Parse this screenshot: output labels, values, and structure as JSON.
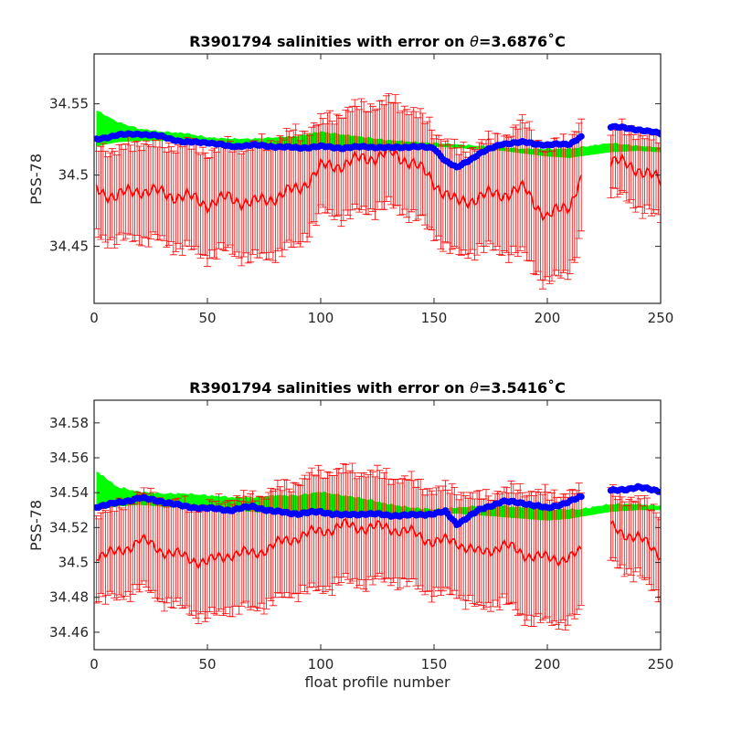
{
  "chart_data": [
    {
      "type": "line",
      "title": "R3901794 salinities with error on θ=3.6876˚C",
      "title_parts": {
        "prefix": "R3901794 salinities with error on ",
        "symbol": "θ",
        "suffix": "=3.6876˚C"
      },
      "xlabel": "",
      "ylabel": "PSS-78",
      "xlim": [
        0,
        250
      ],
      "ylim": [
        34.41,
        34.585
      ],
      "xticks": [
        0,
        50,
        100,
        150,
        200,
        250
      ],
      "yticks": [
        34.45,
        34.5,
        34.55
      ],
      "ytick_labels": [
        "34.45",
        "34.5",
        "34.55"
      ],
      "grid": false,
      "colors": {
        "float": "#ff0000",
        "mapped": "#00ff00",
        "calibrated": "#0000ff"
      },
      "series": [
        {
          "role": "float",
          "style": "line-errorbar",
          "profiles": [
            1,
            10,
            20,
            30,
            40,
            50,
            60,
            70,
            80,
            90,
            100,
            110,
            120,
            130,
            140,
            150,
            160,
            170,
            180,
            190,
            200,
            210,
            214,
            228,
            240,
            250
          ],
          "x": [
            1,
            10,
            20,
            30,
            40,
            50,
            60,
            70,
            80,
            90,
            100,
            110,
            120,
            130,
            140,
            150,
            160,
            170,
            180,
            190,
            200,
            210,
            214,
            228,
            240,
            250
          ],
          "values": [
            34.49,
            34.485,
            34.49,
            34.487,
            34.485,
            34.48,
            34.484,
            34.48,
            34.485,
            34.49,
            34.505,
            34.508,
            34.512,
            34.515,
            34.51,
            34.495,
            34.48,
            34.485,
            34.487,
            34.49,
            34.47,
            34.48,
            34.495,
            34.51,
            34.505,
            34.495
          ],
          "errors": [
            0.03,
            0.03,
            0.032,
            0.032,
            0.035,
            0.035,
            0.035,
            0.038,
            0.038,
            0.038,
            0.03,
            0.035,
            0.035,
            0.035,
            0.035,
            0.035,
            0.035,
            0.035,
            0.038,
            0.045,
            0.045,
            0.045,
            0.04,
            0.02,
            0.025,
            0.025
          ]
        },
        {
          "role": "mapped",
          "style": "band",
          "x": [
            1,
            10,
            20,
            30,
            40,
            50,
            60,
            70,
            80,
            90,
            100,
            110,
            120,
            130,
            140,
            150,
            160,
            170,
            180,
            190,
            200,
            210,
            214,
            228,
            240,
            250
          ],
          "lower": [
            34.52,
            34.523,
            34.524,
            34.524,
            34.524,
            34.521,
            34.52,
            34.52,
            34.519,
            34.518,
            34.52,
            34.517,
            34.518,
            34.518,
            34.519,
            34.52,
            34.519,
            34.518,
            34.517,
            34.515,
            34.513,
            34.512,
            34.513,
            34.516,
            34.517,
            34.516
          ],
          "upper": [
            34.545,
            34.537,
            34.532,
            34.53,
            34.529,
            34.526,
            34.525,
            34.525,
            34.526,
            34.527,
            34.53,
            34.528,
            34.526,
            34.524,
            34.523,
            34.522,
            34.521,
            34.52,
            34.519,
            34.518,
            34.518,
            34.518,
            34.519,
            34.522,
            34.52,
            34.519
          ]
        },
        {
          "role": "calibrated",
          "style": "dots",
          "x": [
            1,
            10,
            20,
            30,
            40,
            50,
            60,
            70,
            80,
            90,
            100,
            110,
            120,
            130,
            140,
            150,
            155,
            160,
            170,
            180,
            190,
            200,
            210,
            214,
            228,
            240,
            250
          ],
          "values": [
            34.525,
            34.528,
            34.529,
            34.527,
            34.523,
            34.523,
            34.52,
            34.521,
            34.52,
            34.519,
            34.52,
            34.519,
            34.52,
            34.519,
            34.52,
            34.519,
            34.51,
            34.505,
            34.515,
            34.522,
            34.523,
            34.521,
            34.522,
            34.526,
            34.534,
            34.532,
            34.529
          ]
        }
      ]
    },
    {
      "type": "line",
      "title": "R3901794 salinities with error on θ=3.5416˚C",
      "title_parts": {
        "prefix": "R3901794 salinities with error on ",
        "symbol": "θ",
        "suffix": "=3.5416˚C"
      },
      "xlabel": "float profile number",
      "ylabel": "PSS-78",
      "xlim": [
        0,
        250
      ],
      "ylim": [
        34.45,
        34.593
      ],
      "xticks": [
        0,
        50,
        100,
        150,
        200,
        250
      ],
      "yticks": [
        34.46,
        34.48,
        34.5,
        34.52,
        34.54,
        34.56,
        34.58
      ],
      "ytick_labels": [
        "34.46",
        "34.48",
        "34.5",
        "34.52",
        "34.54",
        "34.56",
        "34.58"
      ],
      "grid": false,
      "colors": {
        "float": "#ff0000",
        "mapped": "#00ff00",
        "calibrated": "#0000ff"
      },
      "series": [
        {
          "role": "float",
          "style": "line-errorbar",
          "x": [
            1,
            10,
            20,
            30,
            40,
            50,
            60,
            70,
            80,
            90,
            100,
            110,
            120,
            130,
            140,
            150,
            160,
            170,
            180,
            190,
            200,
            210,
            214,
            228,
            240,
            250
          ],
          "values": [
            34.505,
            34.505,
            34.513,
            34.507,
            34.503,
            34.5,
            34.505,
            34.505,
            34.51,
            34.515,
            34.518,
            34.521,
            34.52,
            34.52,
            34.517,
            34.512,
            34.512,
            34.505,
            34.51,
            34.505,
            34.502,
            34.503,
            34.505,
            34.52,
            34.514,
            34.505
          ],
          "errors": [
            0.022,
            0.025,
            0.025,
            0.027,
            0.028,
            0.03,
            0.03,
            0.03,
            0.03,
            0.03,
            0.032,
            0.03,
            0.03,
            0.028,
            0.028,
            0.028,
            0.028,
            0.03,
            0.03,
            0.035,
            0.035,
            0.035,
            0.033,
            0.018,
            0.02,
            0.022
          ]
        },
        {
          "role": "mapped",
          "style": "band",
          "x": [
            1,
            10,
            20,
            30,
            40,
            50,
            60,
            70,
            80,
            90,
            100,
            110,
            120,
            130,
            140,
            150,
            160,
            170,
            180,
            190,
            200,
            210,
            214,
            228,
            240,
            250
          ],
          "lower": [
            34.53,
            34.532,
            34.533,
            34.532,
            34.531,
            34.531,
            34.53,
            34.529,
            34.528,
            34.528,
            34.528,
            34.527,
            34.527,
            34.528,
            34.528,
            34.528,
            34.528,
            34.527,
            34.526,
            34.525,
            34.524,
            34.525,
            34.526,
            34.529,
            34.53,
            34.53
          ],
          "upper": [
            34.552,
            34.543,
            34.54,
            34.539,
            34.539,
            34.538,
            34.537,
            34.537,
            34.538,
            34.538,
            34.54,
            34.538,
            34.536,
            34.533,
            34.531,
            34.53,
            34.531,
            34.532,
            34.532,
            34.531,
            34.53,
            34.53,
            34.53,
            34.533,
            34.533,
            34.532
          ]
        },
        {
          "role": "calibrated",
          "style": "dots",
          "x": [
            1,
            10,
            20,
            30,
            40,
            50,
            60,
            70,
            80,
            90,
            100,
            110,
            120,
            130,
            140,
            150,
            155,
            160,
            170,
            180,
            190,
            200,
            210,
            214,
            228,
            240,
            250
          ],
          "values": [
            34.532,
            34.534,
            34.537,
            34.535,
            34.532,
            34.531,
            34.53,
            34.532,
            34.529,
            34.528,
            34.529,
            34.527,
            34.528,
            34.527,
            34.527,
            34.528,
            34.529,
            34.522,
            34.53,
            34.535,
            34.534,
            34.531,
            34.535,
            34.537,
            34.541,
            34.543,
            34.541
          ]
        }
      ]
    }
  ]
}
